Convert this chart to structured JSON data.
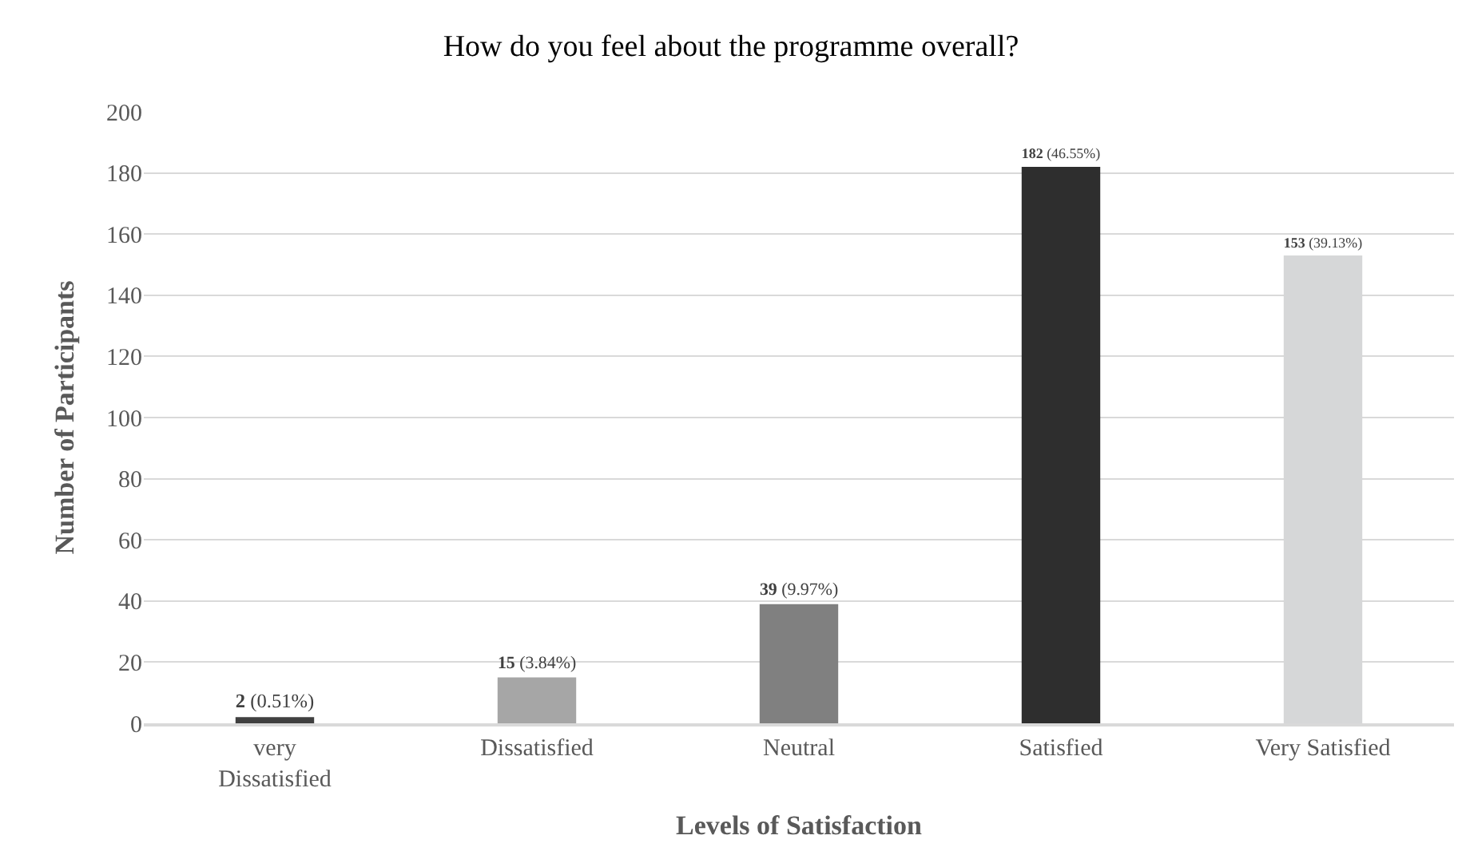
{
  "chart_data": {
    "type": "bar",
    "title": "How do you feel about the programme overall?",
    "xlabel": "Levels of Satisfaction",
    "ylabel": "Number of Participants",
    "categories": [
      "very Dissatisfied",
      "Dissatisfied",
      "Neutral",
      "Satisfied",
      "Very Satisfied"
    ],
    "values": [
      2,
      15,
      39,
      182,
      153
    ],
    "colors": [
      "#404040",
      "#a6a6a6",
      "#808080",
      "#2e2e2e",
      "#d6d7d8"
    ],
    "value_labels": [
      "2 (0.51%)",
      "15 (3.84%)",
      "39 (9.97%)",
      "182 (46.55%)",
      "153 (39.13%)"
    ],
    "ylim": [
      0,
      200
    ],
    "yticks": [
      0,
      20,
      40,
      60,
      80,
      100,
      120,
      140,
      160,
      180,
      200
    ],
    "grid": "y",
    "legend": false
  }
}
